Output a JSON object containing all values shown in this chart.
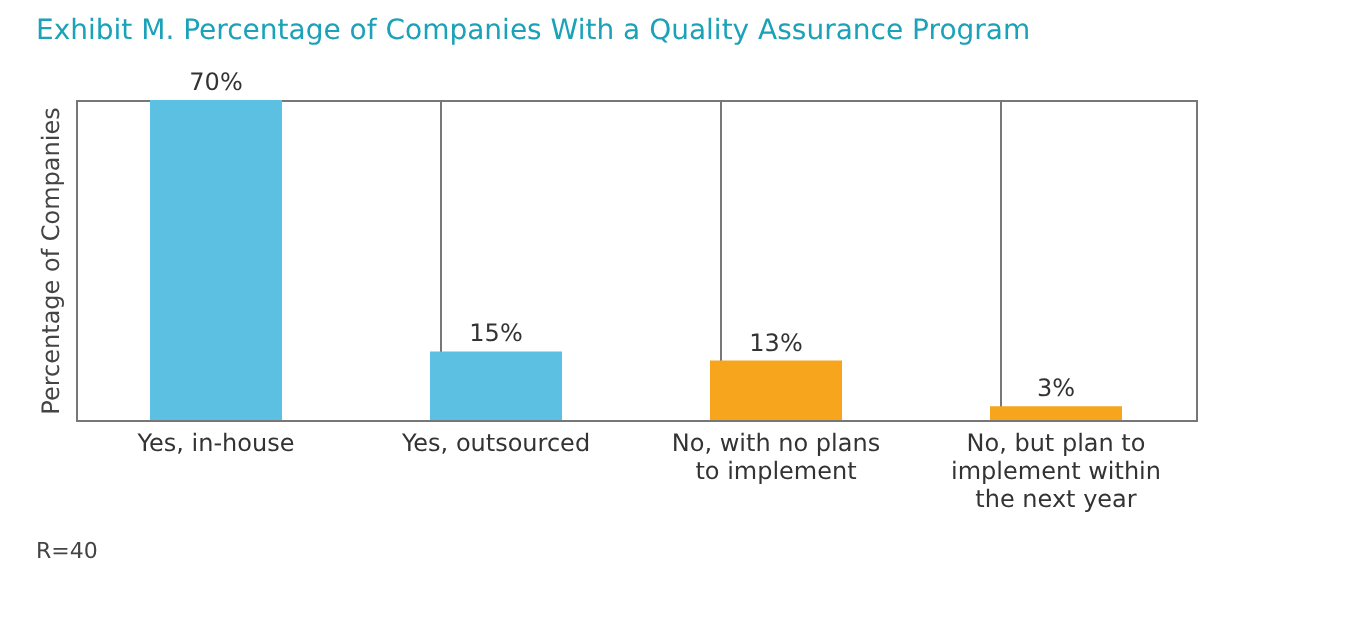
{
  "chart_data": {
    "type": "bar",
    "title": "Exhibit M. Percentage of Companies With a Quality Assurance Program",
    "ylabel": "Percentage of Companies",
    "categories": [
      "Yes, in-house",
      "Yes, outsourced",
      "No, with no plans to implement",
      "No, but plan to implement within the next year"
    ],
    "values": [
      70,
      15,
      13,
      3
    ],
    "colors": [
      "#5bc0e2",
      "#5bc0e2",
      "#f6a51c",
      "#f6a51c"
    ],
    "value_labels": [
      "70%",
      "15%",
      "13%",
      "3%"
    ],
    "grid": "x",
    "annotations": [
      "R=40"
    ]
  }
}
